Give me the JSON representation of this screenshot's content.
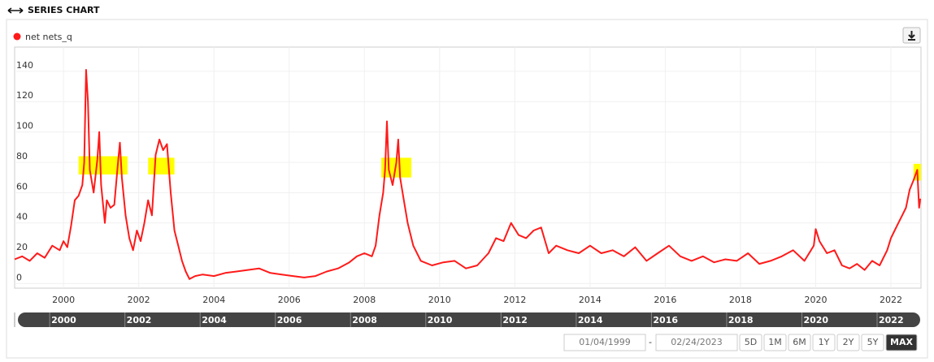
{
  "header": {
    "title": "SERIES CHART"
  },
  "chart_data": {
    "type": "line",
    "x": [
      1998.7,
      1998.9,
      1999.1,
      1999.3,
      1999.5,
      1999.7,
      1999.9,
      2000.0,
      2000.1,
      2000.2,
      2000.3,
      2000.4,
      2000.5,
      2000.55,
      2000.6,
      2000.65,
      2000.7,
      2000.8,
      2000.9,
      2000.95,
      2001.0,
      2001.1,
      2001.15,
      2001.25,
      2001.35,
      2001.45,
      2001.5,
      2001.55,
      2001.65,
      2001.75,
      2001.85,
      2001.95,
      2002.05,
      2002.15,
      2002.25,
      2002.35,
      2002.45,
      2002.55,
      2002.65,
      2002.75,
      2002.85,
      2002.95,
      2003.05,
      2003.15,
      2003.25,
      2003.35,
      2003.5,
      2003.7,
      2004.0,
      2004.3,
      2004.6,
      2004.9,
      2005.2,
      2005.5,
      2005.8,
      2006.1,
      2006.4,
      2006.7,
      2007.0,
      2007.3,
      2007.6,
      2007.8,
      2008.0,
      2008.2,
      2008.3,
      2008.4,
      2008.5,
      2008.55,
      2008.6,
      2008.65,
      2008.75,
      2008.85,
      2008.9,
      2008.95,
      2009.05,
      2009.15,
      2009.3,
      2009.5,
      2009.8,
      2010.1,
      2010.4,
      2010.7,
      2011.0,
      2011.3,
      2011.5,
      2011.7,
      2011.9,
      2012.1,
      2012.3,
      2012.5,
      2012.7,
      2012.9,
      2013.1,
      2013.4,
      2013.7,
      2014.0,
      2014.3,
      2014.6,
      2014.9,
      2015.2,
      2015.5,
      2015.8,
      2016.1,
      2016.4,
      2016.7,
      2017.0,
      2017.3,
      2017.6,
      2017.9,
      2018.2,
      2018.5,
      2018.8,
      2019.1,
      2019.4,
      2019.7,
      2019.95,
      2020.0,
      2020.1,
      2020.3,
      2020.5,
      2020.7,
      2020.9,
      2021.1,
      2021.3,
      2021.5,
      2021.7,
      2021.9,
      2022.0,
      2022.1,
      2022.2,
      2022.3,
      2022.4,
      2022.5,
      2022.6,
      2022.7,
      2022.75,
      2022.78
    ],
    "series": [
      {
        "name": "net nets_q",
        "color": "#ff1a1a",
        "values": [
          16,
          18,
          15,
          20,
          17,
          25,
          22,
          28,
          24,
          38,
          55,
          58,
          65,
          80,
          141,
          120,
          75,
          60,
          82,
          100,
          65,
          40,
          55,
          50,
          52,
          80,
          93,
          70,
          45,
          30,
          22,
          35,
          28,
          40,
          55,
          45,
          85,
          95,
          88,
          92,
          60,
          35,
          25,
          15,
          8,
          3,
          5,
          6,
          5,
          7,
          8,
          9,
          10,
          7,
          6,
          5,
          4,
          5,
          8,
          10,
          14,
          18,
          20,
          18,
          25,
          45,
          60,
          75,
          107,
          75,
          65,
          80,
          95,
          70,
          55,
          40,
          25,
          15,
          12,
          14,
          15,
          10,
          12,
          20,
          30,
          28,
          40,
          32,
          30,
          35,
          37,
          20,
          25,
          22,
          20,
          25,
          20,
          22,
          18,
          24,
          15,
          20,
          25,
          18,
          15,
          18,
          14,
          16,
          15,
          20,
          13,
          15,
          18,
          22,
          15,
          25,
          36,
          28,
          20,
          22,
          12,
          10,
          13,
          9,
          15,
          12,
          22,
          30,
          35,
          40,
          45,
          50,
          62,
          68,
          75,
          50,
          56
        ]
      }
    ],
    "highlights": [
      {
        "x": [
          2000.4,
          2001.7
        ],
        "y": [
          72,
          84
        ]
      },
      {
        "x": [
          2002.25,
          2002.95
        ],
        "y": [
          72,
          83
        ]
      },
      {
        "x": [
          2008.45,
          2009.25
        ],
        "y": [
          70,
          83
        ]
      },
      {
        "x": [
          2022.6,
          2022.8
        ],
        "y": [
          68,
          79
        ]
      }
    ],
    "highlight_color": "#ffff00",
    "xlim": [
      1998.7,
      2022.8
    ],
    "ylim": [
      -3,
      156
    ],
    "xticks": [
      2000,
      2002,
      2004,
      2006,
      2008,
      2010,
      2012,
      2014,
      2016,
      2018,
      2020,
      2022
    ],
    "yticks": [
      0,
      20,
      40,
      60,
      80,
      100,
      120,
      140
    ],
    "grid": true
  },
  "range": {
    "from": "01/04/1999",
    "separator": "-",
    "to": "02/24/2023",
    "buttons": [
      "5D",
      "1M",
      "6M",
      "1Y",
      "2Y",
      "5Y",
      "MAX"
    ],
    "active": "MAX"
  }
}
